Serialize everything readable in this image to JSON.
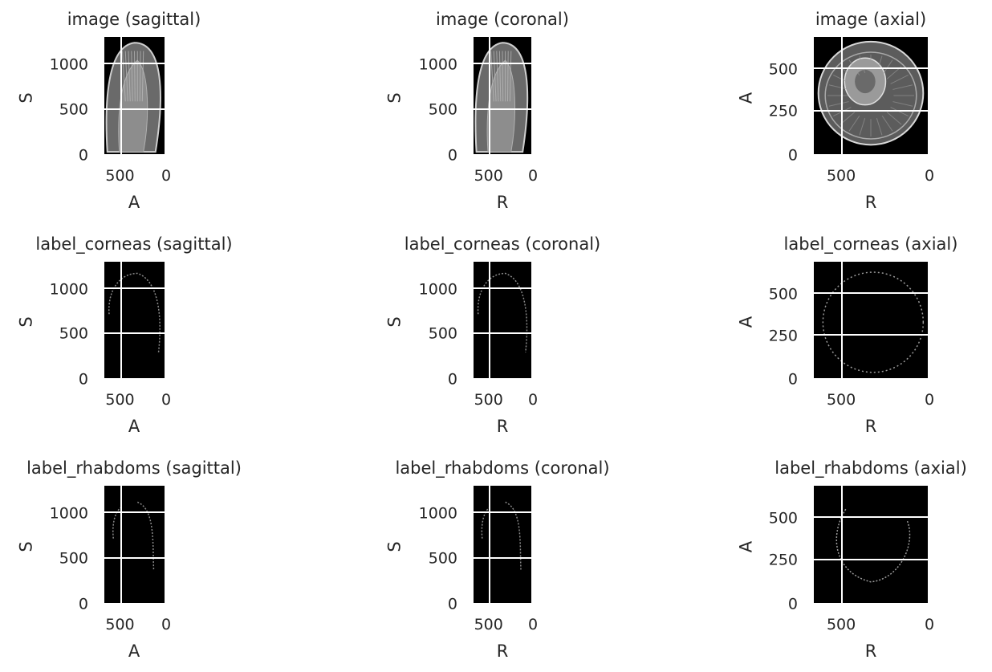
{
  "panels": [
    {
      "title": "image (sagittal)",
      "xlabel": "A",
      "ylabel": "S",
      "yticks": [
        "0",
        "500",
        "1000"
      ],
      "xticks": [
        "500",
        "0"
      ],
      "content": "sag-image"
    },
    {
      "title": "image (coronal)",
      "xlabel": "R",
      "ylabel": "S",
      "yticks": [
        "0",
        "500",
        "1000"
      ],
      "xticks": [
        "500",
        "0"
      ],
      "content": "cor-image"
    },
    {
      "title": "image (axial)",
      "xlabel": "R",
      "ylabel": "A",
      "yticks": [
        "0",
        "250",
        "500"
      ],
      "xticks": [
        "500",
        "0"
      ],
      "content": "ax-image"
    },
    {
      "title": "label_corneas (sagittal)",
      "xlabel": "A",
      "ylabel": "S",
      "yticks": [
        "0",
        "500",
        "1000"
      ],
      "xticks": [
        "500",
        "0"
      ],
      "content": "sag-cornea"
    },
    {
      "title": "label_corneas (coronal)",
      "xlabel": "R",
      "ylabel": "S",
      "yticks": [
        "0",
        "500",
        "1000"
      ],
      "xticks": [
        "500",
        "0"
      ],
      "content": "cor-cornea"
    },
    {
      "title": "label_corneas (axial)",
      "xlabel": "R",
      "ylabel": "A",
      "yticks": [
        "0",
        "250",
        "500"
      ],
      "xticks": [
        "500",
        "0"
      ],
      "content": "ax-cornea"
    },
    {
      "title": "label_rhabdoms (sagittal)",
      "xlabel": "A",
      "ylabel": "S",
      "yticks": [
        "0",
        "500",
        "1000"
      ],
      "xticks": [
        "500",
        "0"
      ],
      "content": "sag-rhabdom"
    },
    {
      "title": "label_rhabdoms (coronal)",
      "xlabel": "R",
      "ylabel": "S",
      "yticks": [
        "0",
        "500",
        "1000"
      ],
      "xticks": [
        "500",
        "0"
      ],
      "content": "cor-rhabdom"
    },
    {
      "title": "label_rhabdoms (axial)",
      "xlabel": "R",
      "ylabel": "A",
      "yticks": [
        "0",
        "250",
        "500"
      ],
      "xticks": [
        "500",
        "0"
      ],
      "content": "ax-rhabdom"
    }
  ]
}
